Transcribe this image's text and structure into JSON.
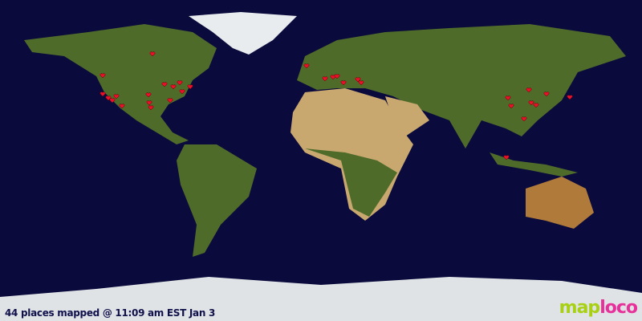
{
  "map": {
    "caption": "44 places mapped @ 11:09 am EST Jan 3",
    "logo": {
      "part1": "map",
      "part2": "loco"
    },
    "marker_icon": "heart-marker-icon",
    "colors": {
      "ocean": "#0a0a3c",
      "marker": "#e8102a",
      "land": "#4f6b2a",
      "desert": "#c9a870",
      "ice": "#e8ecef"
    }
  }
}
